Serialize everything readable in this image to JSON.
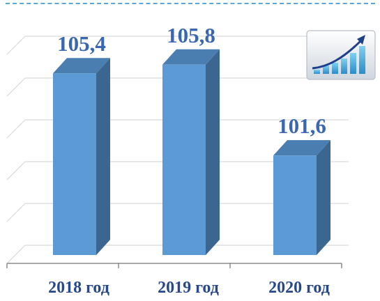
{
  "chart_data": {
    "type": "bar",
    "categories": [
      "2018 год",
      "2019 год",
      "2020 год"
    ],
    "values": [
      105.4,
      105.8,
      101.6
    ],
    "value_labels": [
      "105,4",
      "105,8",
      "101,6"
    ],
    "title": "",
    "xlabel": "",
    "ylabel": "",
    "ylim": [
      97.0,
      107.5
    ],
    "grid": true,
    "legend": "none",
    "style": "3d-column"
  },
  "colors": {
    "bar_front": "#5b9ad5",
    "bar_side": "#3a6690",
    "bar_top": "#4a7eb0",
    "data_label": "#3a67b1",
    "tick_label": "#28488c",
    "grid": "#d9d9d9",
    "axis": "#8c8c8c",
    "dashed_rule": "#5aa6d6"
  },
  "icon": {
    "name": "growth-chart-icon"
  }
}
